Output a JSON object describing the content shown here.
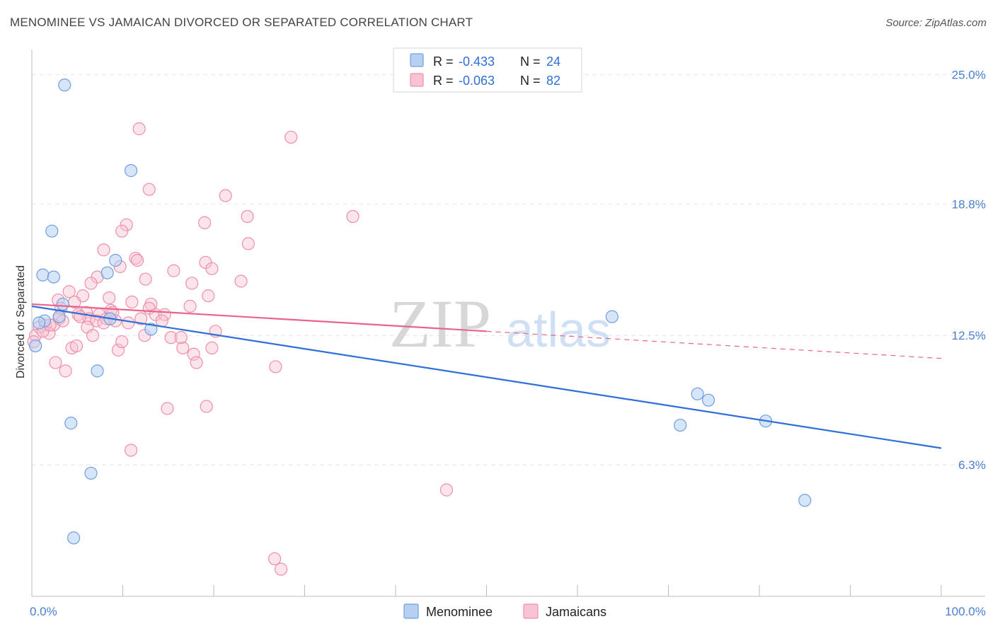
{
  "title": "MENOMINEE VS JAMAICAN DIVORCED OR SEPARATED CORRELATION CHART",
  "source": "Source: ZipAtlas.com",
  "colors": {
    "menominee_fill": "#b7d0f2",
    "menominee_stroke": "#6f9fe0",
    "menominee_line": "#2f6fd6",
    "jamaican_fill": "#f8c3d2",
    "jamaican_stroke": "#ef8fab",
    "jamaican_line": "#e8648c",
    "tick_label": "#4a7fd0",
    "grid": "#e4e4e4"
  },
  "legend": {
    "rows": [
      {
        "r_label": "R = ",
        "r_value": "-0.433",
        "n_label": "N = ",
        "n_value": "24",
        "series": "Menominee"
      },
      {
        "r_label": "R = ",
        "r_value": "-0.063",
        "n_label": "N = ",
        "n_value": "82",
        "series": "Jamaicans"
      }
    ]
  },
  "watermark": {
    "zip": "ZIP",
    "atlas": "atlas"
  },
  "chart_data": {
    "type": "scatter",
    "title": "MENOMINEE VS JAMAICAN DIVORCED OR SEPARATED CORRELATION CHART",
    "xlabel": "",
    "ylabel": "Divorced or Separated",
    "xlim": [
      0,
      100
    ],
    "ylim": [
      0,
      26.2
    ],
    "x_tick_labels": [
      "0.0%",
      "100.0%"
    ],
    "y_ticks": [
      6.3,
      12.5,
      18.8,
      25.0
    ],
    "y_tick_labels": [
      "6.3%",
      "12.5%",
      "18.8%",
      "25.0%"
    ],
    "grid": true,
    "series": [
      {
        "name": "Menominee",
        "r": -0.433,
        "n": 24,
        "trend": {
          "x0": 0,
          "y0": 13.9,
          "x1": 100,
          "y1": 7.1,
          "dashed_from": null
        },
        "points": [
          [
            3.6,
            24.5
          ],
          [
            10.9,
            20.4
          ],
          [
            2.2,
            17.5
          ],
          [
            9.2,
            16.1
          ],
          [
            1.2,
            15.4
          ],
          [
            8.3,
            15.5
          ],
          [
            2.4,
            15.3
          ],
          [
            3.4,
            14.0
          ],
          [
            0.4,
            12.0
          ],
          [
            1.4,
            13.2
          ],
          [
            8.6,
            13.3
          ],
          [
            0.8,
            13.1
          ],
          [
            3.0,
            13.4
          ],
          [
            13.1,
            12.8
          ],
          [
            7.2,
            10.8
          ],
          [
            4.3,
            8.3
          ],
          [
            6.5,
            5.9
          ],
          [
            4.6,
            2.8
          ],
          [
            63.8,
            13.4
          ],
          [
            73.2,
            9.7
          ],
          [
            74.4,
            9.4
          ],
          [
            71.3,
            8.2
          ],
          [
            80.7,
            8.4
          ],
          [
            85.0,
            4.6
          ]
        ]
      },
      {
        "name": "Jamaicans",
        "r": -0.063,
        "n": 82,
        "trend": {
          "x0": 0,
          "y0": 14.0,
          "x1": 100,
          "y1": 11.4,
          "dashed_from": 50
        },
        "points": [
          [
            11.8,
            22.4
          ],
          [
            28.5,
            22.0
          ],
          [
            12.9,
            19.5
          ],
          [
            21.3,
            19.2
          ],
          [
            23.7,
            18.2
          ],
          [
            35.3,
            18.2
          ],
          [
            10.4,
            17.8
          ],
          [
            19.0,
            17.9
          ],
          [
            9.9,
            17.5
          ],
          [
            23.8,
            16.9
          ],
          [
            7.9,
            16.6
          ],
          [
            11.4,
            16.2
          ],
          [
            11.6,
            16.1
          ],
          [
            19.1,
            16.0
          ],
          [
            9.7,
            15.8
          ],
          [
            15.6,
            15.6
          ],
          [
            19.8,
            15.7
          ],
          [
            7.2,
            15.3
          ],
          [
            12.5,
            15.2
          ],
          [
            23.0,
            15.1
          ],
          [
            6.5,
            15.0
          ],
          [
            17.6,
            15.0
          ],
          [
            4.1,
            14.6
          ],
          [
            5.6,
            14.4
          ],
          [
            8.5,
            14.3
          ],
          [
            19.4,
            14.4
          ],
          [
            2.9,
            14.2
          ],
          [
            4.7,
            14.1
          ],
          [
            11.0,
            14.1
          ],
          [
            13.1,
            14.0
          ],
          [
            17.4,
            13.9
          ],
          [
            3.2,
            13.8
          ],
          [
            12.9,
            13.8
          ],
          [
            8.7,
            13.7
          ],
          [
            6.0,
            13.6
          ],
          [
            5.1,
            13.5
          ],
          [
            13.6,
            13.5
          ],
          [
            7.4,
            13.5
          ],
          [
            6.3,
            13.3
          ],
          [
            3.0,
            13.3
          ],
          [
            9.2,
            13.2
          ],
          [
            7.1,
            13.2
          ],
          [
            8.2,
            13.3
          ],
          [
            14.6,
            13.5
          ],
          [
            2.4,
            13.0
          ],
          [
            1.5,
            13.0
          ],
          [
            0.8,
            12.9
          ],
          [
            10.6,
            13.1
          ],
          [
            1.9,
            12.6
          ],
          [
            0.4,
            12.5
          ],
          [
            6.1,
            12.9
          ],
          [
            20.2,
            12.7
          ],
          [
            15.3,
            12.4
          ],
          [
            6.7,
            12.5
          ],
          [
            12.4,
            12.5
          ],
          [
            4.4,
            11.9
          ],
          [
            9.5,
            11.8
          ],
          [
            16.6,
            11.9
          ],
          [
            19.8,
            11.9
          ],
          [
            17.8,
            11.6
          ],
          [
            2.6,
            11.2
          ],
          [
            26.8,
            11.0
          ],
          [
            3.7,
            10.8
          ],
          [
            14.9,
            9.0
          ],
          [
            19.2,
            9.1
          ],
          [
            10.9,
            7.0
          ],
          [
            45.6,
            5.1
          ],
          [
            26.7,
            1.8
          ],
          [
            27.4,
            1.3
          ],
          [
            0.2,
            12.2
          ],
          [
            1.2,
            12.7
          ],
          [
            2.0,
            13.0
          ],
          [
            3.4,
            13.2
          ],
          [
            5.3,
            13.4
          ],
          [
            7.9,
            13.1
          ],
          [
            8.9,
            13.6
          ],
          [
            12.0,
            13.3
          ],
          [
            14.3,
            13.2
          ],
          [
            16.4,
            12.4
          ],
          [
            18.1,
            11.2
          ],
          [
            4.9,
            12.0
          ],
          [
            9.9,
            12.2
          ]
        ]
      }
    ]
  },
  "bottom_legend": [
    "Menominee",
    "Jamaicans"
  ]
}
